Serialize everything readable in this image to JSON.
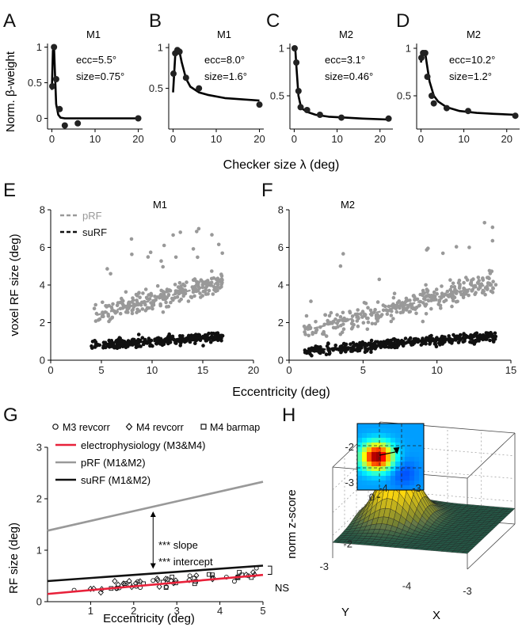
{
  "panel_letters": [
    "A",
    "B",
    "C",
    "D",
    "E",
    "F",
    "G",
    "H"
  ],
  "shared_labels": {
    "row1_ylabel": "Norm. β-weight",
    "row1_xlabel": "Checker size λ (deg)",
    "row2_ylabel": "voxel RF size (deg)",
    "row2_xlabel": "Eccentricity (deg)"
  },
  "chart_data": [
    {
      "id": "A",
      "type": "line",
      "title": "M1",
      "annotations": [
        "ecc=5.5°",
        "size=0.75°"
      ],
      "xlim": [
        -1,
        21
      ],
      "ylim": [
        -0.15,
        1.05
      ],
      "xticks": [
        "0",
        "10",
        "20"
      ],
      "yticks": [
        "0",
        "0.5",
        "1"
      ],
      "points": {
        "x": [
          0.1,
          0.5,
          1.0,
          1.8,
          3.0,
          6.0,
          20.0
        ],
        "y": [
          0.45,
          1.0,
          0.55,
          0.13,
          -0.1,
          -0.07,
          0.0
        ]
      },
      "fit": {
        "x": [
          0,
          0.25,
          0.5,
          0.75,
          1.0,
          1.5,
          2.0,
          3,
          5,
          10,
          20
        ],
        "y": [
          0.4,
          0.95,
          1.0,
          0.6,
          0.2,
          0.05,
          0.01,
          0.0,
          0.0,
          0.0,
          0.0
        ]
      }
    },
    {
      "id": "B",
      "type": "line",
      "title": "M1",
      "annotations": [
        "ecc=8.0°",
        "size=1.6°"
      ],
      "xlim": [
        -1,
        21
      ],
      "ylim": [
        0,
        1.05
      ],
      "xticks": [
        "0",
        "10",
        "20"
      ],
      "yticks": [
        "0.5",
        "1"
      ],
      "points": {
        "x": [
          0.1,
          0.5,
          1.0,
          1.5,
          3.0,
          6.0,
          20.0
        ],
        "y": [
          0.68,
          0.93,
          0.97,
          0.95,
          0.63,
          0.5,
          0.3
        ]
      },
      "fit": {
        "x": [
          0,
          0.5,
          1.0,
          1.5,
          2.0,
          3,
          4,
          6,
          8,
          12,
          20
        ],
        "y": [
          0.45,
          0.9,
          0.99,
          0.95,
          0.82,
          0.62,
          0.52,
          0.45,
          0.42,
          0.38,
          0.35
        ]
      }
    },
    {
      "id": "C",
      "type": "line",
      "title": "M2",
      "annotations": [
        "ecc=3.1°",
        "size=0.46°"
      ],
      "xlim": [
        -1,
        23
      ],
      "ylim": [
        0.15,
        1.05
      ],
      "xticks": [
        "0",
        "10",
        "20"
      ],
      "yticks": [
        "0.5",
        "1"
      ],
      "points": {
        "x": [
          0.1,
          0.5,
          1.0,
          1.5,
          3.0,
          6.0,
          11.0,
          22.0
        ],
        "y": [
          1.0,
          0.85,
          0.55,
          0.38,
          0.35,
          0.3,
          0.27,
          0.26
        ]
      },
      "fit": {
        "x": [
          0,
          0.25,
          0.5,
          1.0,
          1.5,
          2,
          3,
          5,
          8,
          12,
          16,
          22
        ],
        "y": [
          0.97,
          0.99,
          0.82,
          0.5,
          0.4,
          0.36,
          0.33,
          0.3,
          0.28,
          0.27,
          0.26,
          0.25
        ]
      }
    },
    {
      "id": "D",
      "type": "line",
      "title": "M2",
      "annotations": [
        "ecc=10.2°",
        "size=1.2°"
      ],
      "xlim": [
        -1,
        23
      ],
      "ylim": [
        0.15,
        1.05
      ],
      "xticks": [
        "0",
        "10",
        "20"
      ],
      "yticks": [
        "0.5",
        "1"
      ],
      "points": {
        "x": [
          0.1,
          0.5,
          1.0,
          1.5,
          2.5,
          3.0,
          6.0,
          11.0,
          22.0
        ],
        "y": [
          0.9,
          0.95,
          0.95,
          0.7,
          0.5,
          0.42,
          0.37,
          0.34,
          0.29
        ]
      },
      "fit": {
        "x": [
          0,
          0.5,
          1.0,
          1.5,
          2,
          3,
          4,
          6,
          9,
          13,
          17,
          22
        ],
        "y": [
          0.85,
          0.97,
          0.95,
          0.8,
          0.65,
          0.5,
          0.44,
          0.38,
          0.34,
          0.32,
          0.31,
          0.3
        ]
      }
    },
    {
      "id": "E",
      "type": "scatter",
      "title": "M1",
      "xlim": [
        0,
        20
      ],
      "ylim": [
        0,
        8
      ],
      "xticks": [
        "0",
        "5",
        "10",
        "15",
        "20"
      ],
      "yticks": [
        "0",
        "2",
        "4",
        "6",
        "8"
      ],
      "legend": [
        "pRF",
        "suRF"
      ],
      "legend_position": "top-left",
      "series": [
        {
          "name": "pRF",
          "color": "#999999",
          "xrange": [
            4,
            17
          ],
          "fit": {
            "x": [
              4.5,
              16.5
            ],
            "y": [
              2.4,
              4.1
            ]
          },
          "n": 260,
          "seed": 11
        },
        {
          "name": "suRF",
          "color": "#111111",
          "xrange": [
            4,
            17
          ],
          "fit": {
            "x": [
              4.5,
              16.5
            ],
            "y": [
              0.8,
              1.25
            ]
          },
          "n": 300,
          "seed": 12
        }
      ]
    },
    {
      "id": "F",
      "type": "scatter",
      "title": "M2",
      "xlim": [
        0,
        15
      ],
      "ylim": [
        0,
        8
      ],
      "xticks": [
        "0",
        "5",
        "10",
        "15"
      ],
      "yticks": [
        "0",
        "2",
        "4",
        "6",
        "8"
      ],
      "series": [
        {
          "name": "pRF",
          "color": "#999999",
          "xrange": [
            1,
            14
          ],
          "fit": {
            "x": [
              1.2,
              13.8
            ],
            "y": [
              1.6,
              4.1
            ]
          },
          "n": 330,
          "seed": 21
        },
        {
          "name": "suRF",
          "color": "#111111",
          "xrange": [
            1,
            14
          ],
          "fit": {
            "x": [
              1.2,
              13.8
            ],
            "y": [
              0.5,
              1.3
            ]
          },
          "n": 380,
          "seed": 22
        }
      ]
    },
    {
      "id": "G",
      "type": "line",
      "xlabel": "Eccentricity (deg)",
      "ylabel": "RF size (deg)",
      "xlim": [
        0,
        5
      ],
      "ylim": [
        0,
        3
      ],
      "xticks": [
        "1",
        "2",
        "3",
        "4",
        "5"
      ],
      "yticks": [
        "0",
        "1",
        "2",
        "3"
      ],
      "marker_legend": [
        "M3 revcorr",
        "M4 revcorr",
        "M4 barmap"
      ],
      "series": [
        {
          "name": "electrophysiology (M3&M4)",
          "color": "#e8213a",
          "x": [
            0,
            5
          ],
          "y": [
            0.15,
            0.52
          ]
        },
        {
          "name": "pRF (M1&M2)",
          "color": "#999999",
          "x": [
            0,
            5
          ],
          "y": [
            1.38,
            2.33
          ]
        },
        {
          "name": "suRF (M1&M2)",
          "color": "#111111",
          "x": [
            0,
            5
          ],
          "y": [
            0.4,
            0.7
          ]
        }
      ],
      "annotations": [
        "*** slope",
        "*** intercept",
        "NS"
      ],
      "units_seed": 31
    },
    {
      "id": "H",
      "type": "heatmap",
      "zlabel": "norm z-score",
      "xlabel": "X",
      "ylabel": "Y",
      "zticks": [
        "0",
        "0.5",
        "1"
      ],
      "x_ticks": [
        "-4",
        "-3"
      ],
      "y_ticks": [
        "-2",
        "-3"
      ],
      "inset_x_ticks": [
        "-4",
        "-3"
      ],
      "inset_y_ticks": [
        "-2",
        "-3"
      ]
    }
  ]
}
